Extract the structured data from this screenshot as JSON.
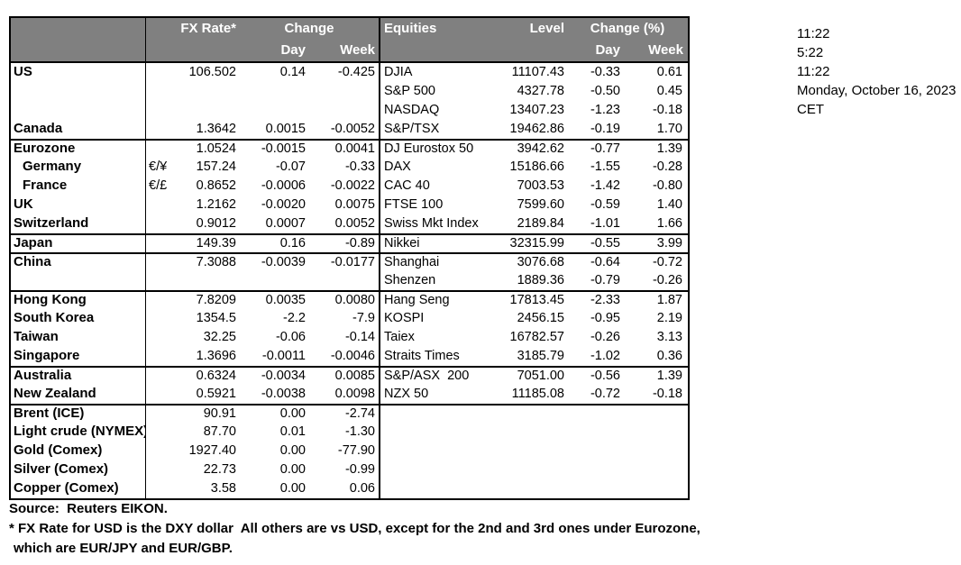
{
  "colors": {
    "header_bg": "#808080",
    "header_text": "#ffffff",
    "border": "#000000",
    "background": "#ffffff"
  },
  "header": {
    "fx": {
      "rate_label": "FX Rate*",
      "change_label": "Change",
      "day_label": "Day",
      "week_label": "Week"
    },
    "equities": {
      "equities_label": "Equities",
      "level_label": "Level",
      "change_label": "Change (%)",
      "day_label": "Day",
      "week_label": "Week"
    }
  },
  "rows": [
    {
      "country": "US",
      "indent": false,
      "pair": "",
      "fx_rate": "106.502",
      "fx_day": "0.14",
      "fx_week": "-0.425",
      "equity": "DJIA",
      "level": "11107.43",
      "eq_day": "-0.33",
      "eq_week": "0.61",
      "group_start": false
    },
    {
      "country": "",
      "indent": false,
      "pair": "",
      "fx_rate": "",
      "fx_day": "",
      "fx_week": "",
      "equity": "S&P 500",
      "level": "4327.78",
      "eq_day": "-0.50",
      "eq_week": "0.45",
      "group_start": false
    },
    {
      "country": "",
      "indent": false,
      "pair": "",
      "fx_rate": "",
      "fx_day": "",
      "fx_week": "",
      "equity": "NASDAQ",
      "level": "13407.23",
      "eq_day": "-1.23",
      "eq_week": "-0.18",
      "group_start": false
    },
    {
      "country": "Canada",
      "indent": false,
      "pair": "",
      "fx_rate": "1.3642",
      "fx_day": "0.0015",
      "fx_week": "-0.0052",
      "equity": "S&P/TSX",
      "level": "19462.86",
      "eq_day": "-0.19",
      "eq_week": "1.70",
      "group_start": false
    },
    {
      "country": "Eurozone",
      "indent": false,
      "pair": "",
      "fx_rate": "1.0524",
      "fx_day": "-0.0015",
      "fx_week": "0.0041",
      "equity": "DJ Eurostox 50",
      "level": "3942.62",
      "eq_day": "-0.77",
      "eq_week": "1.39",
      "group_start": true
    },
    {
      "country": "Germany",
      "indent": true,
      "pair": "€/¥",
      "fx_rate": "157.24",
      "fx_day": "-0.07",
      "fx_week": "-0.33",
      "equity": "DAX",
      "level": "15186.66",
      "eq_day": "-1.55",
      "eq_week": "-0.28",
      "group_start": false
    },
    {
      "country": "France",
      "indent": true,
      "pair": "€/£",
      "fx_rate": "0.8652",
      "fx_day": "-0.0006",
      "fx_week": "-0.0022",
      "equity": "CAC 40",
      "level": "7003.53",
      "eq_day": "-1.42",
      "eq_week": "-0.80",
      "group_start": false
    },
    {
      "country": "UK",
      "indent": false,
      "pair": "",
      "fx_rate": "1.2162",
      "fx_day": "-0.0020",
      "fx_week": "0.0075",
      "equity": "FTSE 100",
      "level": "7599.60",
      "eq_day": "-0.59",
      "eq_week": "1.40",
      "group_start": false
    },
    {
      "country": "Switzerland",
      "indent": false,
      "pair": "",
      "fx_rate": "0.9012",
      "fx_day": "0.0007",
      "fx_week": "0.0052",
      "equity": "Swiss Mkt Index",
      "level": "2189.84",
      "eq_day": "-1.01",
      "eq_week": "1.66",
      "group_start": false
    },
    {
      "country": "Japan",
      "indent": false,
      "pair": "",
      "fx_rate": "149.39",
      "fx_day": "0.16",
      "fx_week": "-0.89",
      "equity": "Nikkei",
      "level": "32315.99",
      "eq_day": "-0.55",
      "eq_week": "3.99",
      "group_start": true
    },
    {
      "country": "China",
      "indent": false,
      "pair": "",
      "fx_rate": "7.3088",
      "fx_day": "-0.0039",
      "fx_week": "-0.0177",
      "equity": "Shanghai",
      "level": "3076.68",
      "eq_day": "-0.64",
      "eq_week": "-0.72",
      "group_start": true
    },
    {
      "country": "",
      "indent": false,
      "pair": "",
      "fx_rate": "",
      "fx_day": "",
      "fx_week": "",
      "equity": "Shenzen",
      "level": "1889.36",
      "eq_day": "-0.79",
      "eq_week": "-0.26",
      "group_start": false
    },
    {
      "country": "Hong Kong",
      "indent": false,
      "pair": "",
      "fx_rate": "7.8209",
      "fx_day": "0.0035",
      "fx_week": "0.0080",
      "equity": "Hang Seng",
      "level": "17813.45",
      "eq_day": "-2.33",
      "eq_week": "1.87",
      "group_start": true
    },
    {
      "country": "South Korea",
      "indent": false,
      "pair": "",
      "fx_rate": "1354.5",
      "fx_day": "-2.2",
      "fx_week": "-7.9",
      "equity": "KOSPI",
      "level": "2456.15",
      "eq_day": "-0.95",
      "eq_week": "2.19",
      "group_start": false
    },
    {
      "country": "Taiwan",
      "indent": false,
      "pair": "",
      "fx_rate": "32.25",
      "fx_day": "-0.06",
      "fx_week": "-0.14",
      "equity": "Taiex",
      "level": "16782.57",
      "eq_day": "-0.26",
      "eq_week": "3.13",
      "group_start": false
    },
    {
      "country": "Singapore",
      "indent": false,
      "pair": "",
      "fx_rate": "1.3696",
      "fx_day": "-0.0011",
      "fx_week": "-0.0046",
      "equity": "Straits Times",
      "level": "3185.79",
      "eq_day": "-1.02",
      "eq_week": "0.36",
      "group_start": false
    },
    {
      "country": "Australia",
      "indent": false,
      "pair": "",
      "fx_rate": "0.6324",
      "fx_day": "-0.0034",
      "fx_week": "0.0085",
      "equity": "S&P/ASX  200",
      "level": "7051.00",
      "eq_day": "-0.56",
      "eq_week": "1.39",
      "group_start": true
    },
    {
      "country": "New Zealand",
      "indent": false,
      "pair": "",
      "fx_rate": "0.5921",
      "fx_day": "-0.0038",
      "fx_week": "0.0098",
      "equity": "NZX 50",
      "level": "11185.08",
      "eq_day": "-0.72",
      "eq_week": "-0.18",
      "group_start": false
    },
    {
      "country": "Brent (ICE)",
      "indent": false,
      "pair": "",
      "fx_rate": "90.91",
      "fx_day": "0.00",
      "fx_week": "-2.74",
      "equity": "",
      "level": "",
      "eq_day": "",
      "eq_week": "",
      "group_start": true
    },
    {
      "country": "Light crude (NYMEX)",
      "indent": false,
      "pair": "",
      "fx_rate": "87.70",
      "fx_day": "0.01",
      "fx_week": "-1.30",
      "equity": "",
      "level": "",
      "eq_day": "",
      "eq_week": "",
      "group_start": false
    },
    {
      "country": "Gold (Comex)",
      "indent": false,
      "pair": "",
      "fx_rate": "1927.40",
      "fx_day": "0.00",
      "fx_week": "-77.90",
      "equity": "",
      "level": "",
      "eq_day": "",
      "eq_week": "",
      "group_start": false
    },
    {
      "country": "Silver (Comex)",
      "indent": false,
      "pair": "",
      "fx_rate": "22.73",
      "fx_day": "0.00",
      "fx_week": "-0.99",
      "equity": "",
      "level": "",
      "eq_day": "",
      "eq_week": "",
      "group_start": false
    },
    {
      "country": "Copper (Comex)",
      "indent": false,
      "pair": "",
      "fx_rate": "3.58",
      "fx_day": "0.00",
      "fx_week": "0.06",
      "equity": "",
      "level": "",
      "eq_day": "",
      "eq_week": "",
      "group_start": false
    }
  ],
  "timestamps": {
    "lines": [
      "11:22",
      "5:22",
      "11:22",
      "Monday, October 16, 2023",
      "CET"
    ]
  },
  "footer": {
    "source": "Source:  Reuters EIKON.",
    "note1": "* FX Rate for USD is the DXY dollar  All others are vs USD, except for the 2nd and 3rd ones under Eurozone,",
    "note2": "which are EUR/JPY and EUR/GBP."
  }
}
